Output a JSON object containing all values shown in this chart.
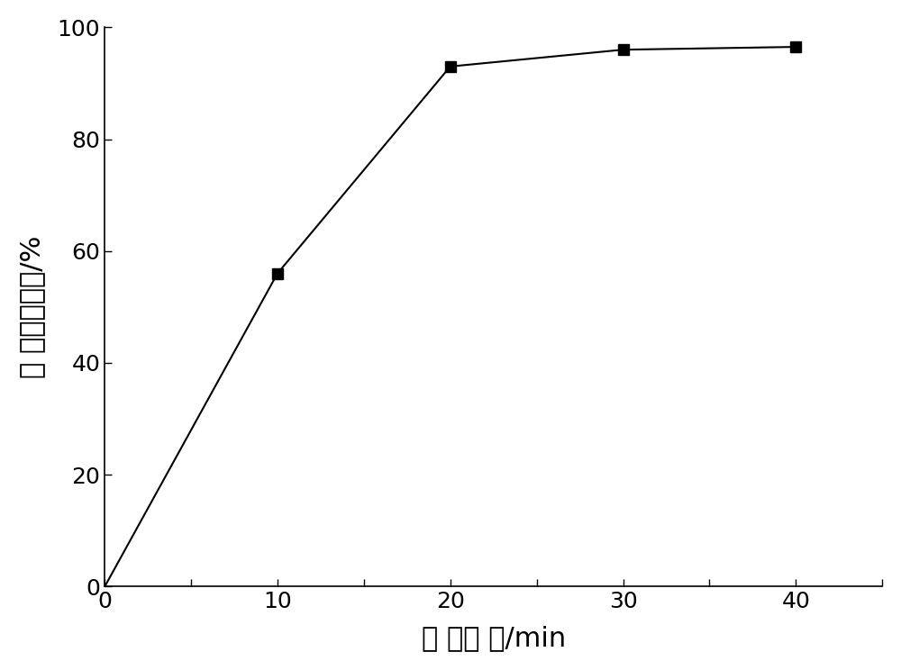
{
  "x": [
    0,
    10,
    20,
    30,
    40
  ],
  "y": [
    0,
    56,
    93,
    96,
    96.5
  ],
  "xlim": [
    0,
    45
  ],
  "ylim": [
    0,
    100
  ],
  "xticks": [
    0,
    5,
    10,
    15,
    20,
    25,
    30,
    35,
    40,
    45
  ],
  "yticks": [
    0,
    20,
    40,
    60,
    80,
    100
  ],
  "xlabel": "反 应时 间/min",
  "ylabel": "甲 基橙降解率/%",
  "line_color": "#000000",
  "marker": "s",
  "marker_color": "#000000",
  "marker_size": 9,
  "linewidth": 1.5,
  "background_color": "#ffffff",
  "font_size_label": 22,
  "font_size_tick": 18
}
